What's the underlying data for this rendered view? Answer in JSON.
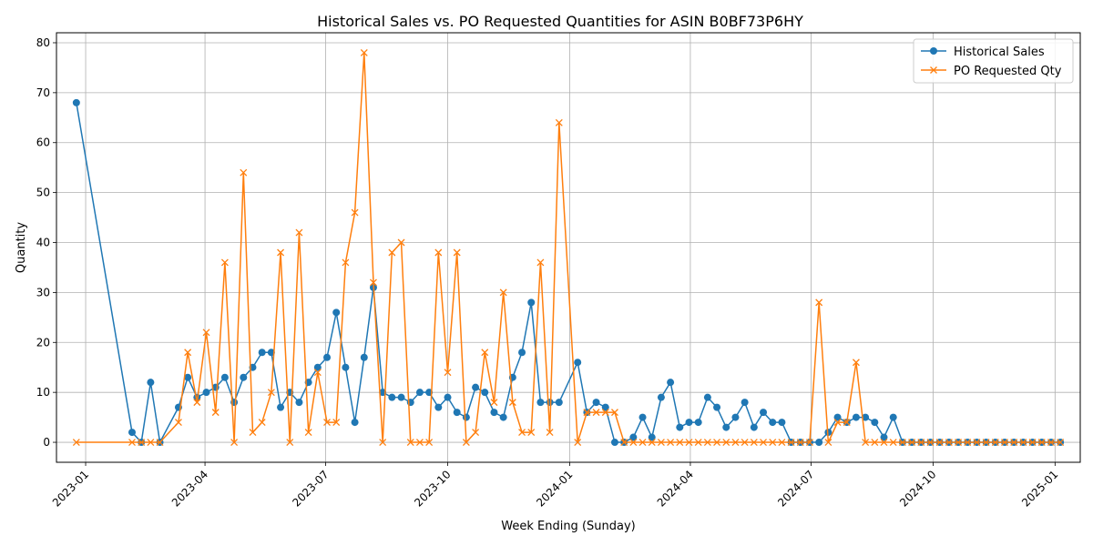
{
  "chart_data": {
    "type": "line",
    "title": "Historical Sales vs. PO Requested Quantities for ASIN B0BF73P6HY",
    "xlabel": "Week Ending (Sunday)",
    "ylabel": "Quantity",
    "xlim": [
      "2022-12-10",
      "2025-01-20"
    ],
    "ylim": [
      -4,
      82
    ],
    "xticks": [
      "2023-01",
      "2023-04",
      "2023-07",
      "2023-10",
      "2024-01",
      "2024-04",
      "2024-07",
      "2024-10",
      "2025-01"
    ],
    "yticks": [
      0,
      10,
      20,
      30,
      40,
      50,
      60,
      70,
      80
    ],
    "grid": true,
    "legend_position": "top-right",
    "series": [
      {
        "name": "Historical Sales",
        "color": "#1f77b4",
        "marker": "circle",
        "points": [
          [
            "2022-12-25",
            68
          ],
          [
            "2023-02-05",
            2
          ],
          [
            "2023-02-12",
            0
          ],
          [
            "2023-02-19",
            12
          ],
          [
            "2023-02-26",
            0
          ],
          [
            "2023-03-12",
            7
          ],
          [
            "2023-03-19",
            13
          ],
          [
            "2023-03-26",
            9
          ],
          [
            "2023-04-02",
            10
          ],
          [
            "2023-04-09",
            11
          ],
          [
            "2023-04-16",
            13
          ],
          [
            "2023-04-23",
            8
          ],
          [
            "2023-04-30",
            13
          ],
          [
            "2023-05-07",
            15
          ],
          [
            "2023-05-14",
            18
          ],
          [
            "2023-05-21",
            18
          ],
          [
            "2023-05-28",
            7
          ],
          [
            "2023-06-04",
            10
          ],
          [
            "2023-06-11",
            8
          ],
          [
            "2023-06-18",
            12
          ],
          [
            "2023-06-25",
            15
          ],
          [
            "2023-07-02",
            17
          ],
          [
            "2023-07-09",
            26
          ],
          [
            "2023-07-16",
            15
          ],
          [
            "2023-07-23",
            4
          ],
          [
            "2023-07-30",
            17
          ],
          [
            "2023-08-06",
            31
          ],
          [
            "2023-08-13",
            10
          ],
          [
            "2023-08-20",
            9
          ],
          [
            "2023-08-27",
            9
          ],
          [
            "2023-09-03",
            8
          ],
          [
            "2023-09-10",
            10
          ],
          [
            "2023-09-17",
            10
          ],
          [
            "2023-09-24",
            7
          ],
          [
            "2023-10-01",
            9
          ],
          [
            "2023-10-08",
            6
          ],
          [
            "2023-10-15",
            5
          ],
          [
            "2023-10-22",
            11
          ],
          [
            "2023-10-29",
            10
          ],
          [
            "2023-11-05",
            6
          ],
          [
            "2023-11-12",
            5
          ],
          [
            "2023-11-19",
            13
          ],
          [
            "2023-11-26",
            18
          ],
          [
            "2023-12-03",
            28
          ],
          [
            "2023-12-10",
            8
          ],
          [
            "2023-12-17",
            8
          ],
          [
            "2023-12-24",
            8
          ],
          [
            "2024-01-07",
            16
          ],
          [
            "2024-01-14",
            6
          ],
          [
            "2024-01-21",
            8
          ],
          [
            "2024-01-28",
            7
          ],
          [
            "2024-02-04",
            0
          ],
          [
            "2024-02-11",
            0
          ],
          [
            "2024-02-18",
            1
          ],
          [
            "2024-02-25",
            5
          ],
          [
            "2024-03-03",
            1
          ],
          [
            "2024-03-10",
            9
          ],
          [
            "2024-03-17",
            12
          ],
          [
            "2024-03-24",
            3
          ],
          [
            "2024-03-31",
            4
          ],
          [
            "2024-04-07",
            4
          ],
          [
            "2024-04-14",
            9
          ],
          [
            "2024-04-21",
            7
          ],
          [
            "2024-04-28",
            3
          ],
          [
            "2024-05-05",
            5
          ],
          [
            "2024-05-12",
            8
          ],
          [
            "2024-05-19",
            3
          ],
          [
            "2024-05-26",
            6
          ],
          [
            "2024-06-02",
            4
          ],
          [
            "2024-06-09",
            4
          ],
          [
            "2024-06-16",
            0
          ],
          [
            "2024-06-23",
            0
          ],
          [
            "2024-06-30",
            0
          ],
          [
            "2024-07-07",
            0
          ],
          [
            "2024-07-14",
            2
          ],
          [
            "2024-07-21",
            5
          ],
          [
            "2024-07-28",
            4
          ],
          [
            "2024-08-04",
            5
          ],
          [
            "2024-08-11",
            5
          ],
          [
            "2024-08-18",
            4
          ],
          [
            "2024-08-25",
            1
          ],
          [
            "2024-09-01",
            5
          ],
          [
            "2024-09-08",
            0
          ],
          [
            "2024-09-15",
            0
          ],
          [
            "2024-09-22",
            0
          ],
          [
            "2024-09-29",
            0
          ],
          [
            "2024-10-06",
            0
          ],
          [
            "2024-10-13",
            0
          ],
          [
            "2024-10-20",
            0
          ],
          [
            "2024-10-27",
            0
          ],
          [
            "2024-11-03",
            0
          ],
          [
            "2024-11-10",
            0
          ],
          [
            "2024-11-17",
            0
          ],
          [
            "2024-11-24",
            0
          ],
          [
            "2024-12-01",
            0
          ],
          [
            "2024-12-08",
            0
          ],
          [
            "2024-12-15",
            0
          ],
          [
            "2024-12-22",
            0
          ],
          [
            "2024-12-29",
            0
          ],
          [
            "2025-01-05",
            0
          ]
        ]
      },
      {
        "name": "PO Requested Qty",
        "color": "#ff7f0e",
        "marker": "x",
        "points": [
          [
            "2022-12-25",
            0
          ],
          [
            "2023-02-05",
            0
          ],
          [
            "2023-02-12",
            0
          ],
          [
            "2023-02-19",
            0
          ],
          [
            "2023-02-26",
            0
          ],
          [
            "2023-03-12",
            4
          ],
          [
            "2023-03-19",
            18
          ],
          [
            "2023-03-26",
            8
          ],
          [
            "2023-04-02",
            22
          ],
          [
            "2023-04-09",
            6
          ],
          [
            "2023-04-16",
            36
          ],
          [
            "2023-04-23",
            0
          ],
          [
            "2023-04-30",
            54
          ],
          [
            "2023-05-07",
            2
          ],
          [
            "2023-05-14",
            4
          ],
          [
            "2023-05-21",
            10
          ],
          [
            "2023-05-28",
            38
          ],
          [
            "2023-06-04",
            0
          ],
          [
            "2023-06-11",
            42
          ],
          [
            "2023-06-18",
            2
          ],
          [
            "2023-06-25",
            14
          ],
          [
            "2023-07-02",
            4
          ],
          [
            "2023-07-09",
            4
          ],
          [
            "2023-07-16",
            36
          ],
          [
            "2023-07-23",
            46
          ],
          [
            "2023-07-30",
            78
          ],
          [
            "2023-08-06",
            32
          ],
          [
            "2023-08-13",
            0
          ],
          [
            "2023-08-20",
            38
          ],
          [
            "2023-08-27",
            40
          ],
          [
            "2023-09-03",
            0
          ],
          [
            "2023-09-10",
            0
          ],
          [
            "2023-09-17",
            0
          ],
          [
            "2023-09-24",
            38
          ],
          [
            "2023-10-01",
            14
          ],
          [
            "2023-10-08",
            38
          ],
          [
            "2023-10-15",
            0
          ],
          [
            "2023-10-22",
            2
          ],
          [
            "2023-10-29",
            18
          ],
          [
            "2023-11-05",
            8
          ],
          [
            "2023-11-12",
            30
          ],
          [
            "2023-11-19",
            8
          ],
          [
            "2023-11-26",
            2
          ],
          [
            "2023-12-03",
            2
          ],
          [
            "2023-12-10",
            36
          ],
          [
            "2023-12-17",
            2
          ],
          [
            "2023-12-24",
            64
          ],
          [
            "2024-01-07",
            0
          ],
          [
            "2024-01-14",
            6
          ],
          [
            "2024-01-21",
            6
          ],
          [
            "2024-01-28",
            6
          ],
          [
            "2024-02-04",
            6
          ],
          [
            "2024-02-11",
            0
          ],
          [
            "2024-02-18",
            0
          ],
          [
            "2024-02-25",
            0
          ],
          [
            "2024-03-03",
            0
          ],
          [
            "2024-03-10",
            0
          ],
          [
            "2024-03-17",
            0
          ],
          [
            "2024-03-24",
            0
          ],
          [
            "2024-03-31",
            0
          ],
          [
            "2024-04-07",
            0
          ],
          [
            "2024-04-14",
            0
          ],
          [
            "2024-04-21",
            0
          ],
          [
            "2024-04-28",
            0
          ],
          [
            "2024-05-05",
            0
          ],
          [
            "2024-05-12",
            0
          ],
          [
            "2024-05-19",
            0
          ],
          [
            "2024-05-26",
            0
          ],
          [
            "2024-06-02",
            0
          ],
          [
            "2024-06-09",
            0
          ],
          [
            "2024-06-16",
            0
          ],
          [
            "2024-06-23",
            0
          ],
          [
            "2024-06-30",
            0
          ],
          [
            "2024-07-07",
            28
          ],
          [
            "2024-07-14",
            0
          ],
          [
            "2024-07-21",
            4
          ],
          [
            "2024-07-28",
            4
          ],
          [
            "2024-08-04",
            16
          ],
          [
            "2024-08-11",
            0
          ],
          [
            "2024-08-18",
            0
          ],
          [
            "2024-08-25",
            0
          ],
          [
            "2024-09-01",
            0
          ],
          [
            "2024-09-08",
            0
          ],
          [
            "2024-09-15",
            0
          ],
          [
            "2024-09-22",
            0
          ],
          [
            "2024-09-29",
            0
          ],
          [
            "2024-10-06",
            0
          ],
          [
            "2024-10-13",
            0
          ],
          [
            "2024-10-20",
            0
          ],
          [
            "2024-10-27",
            0
          ],
          [
            "2024-11-03",
            0
          ],
          [
            "2024-11-10",
            0
          ],
          [
            "2024-11-17",
            0
          ],
          [
            "2024-11-24",
            0
          ],
          [
            "2024-12-01",
            0
          ],
          [
            "2024-12-08",
            0
          ],
          [
            "2024-12-15",
            0
          ],
          [
            "2024-12-22",
            0
          ],
          [
            "2024-12-29",
            0
          ],
          [
            "2025-01-05",
            0
          ]
        ]
      }
    ]
  }
}
